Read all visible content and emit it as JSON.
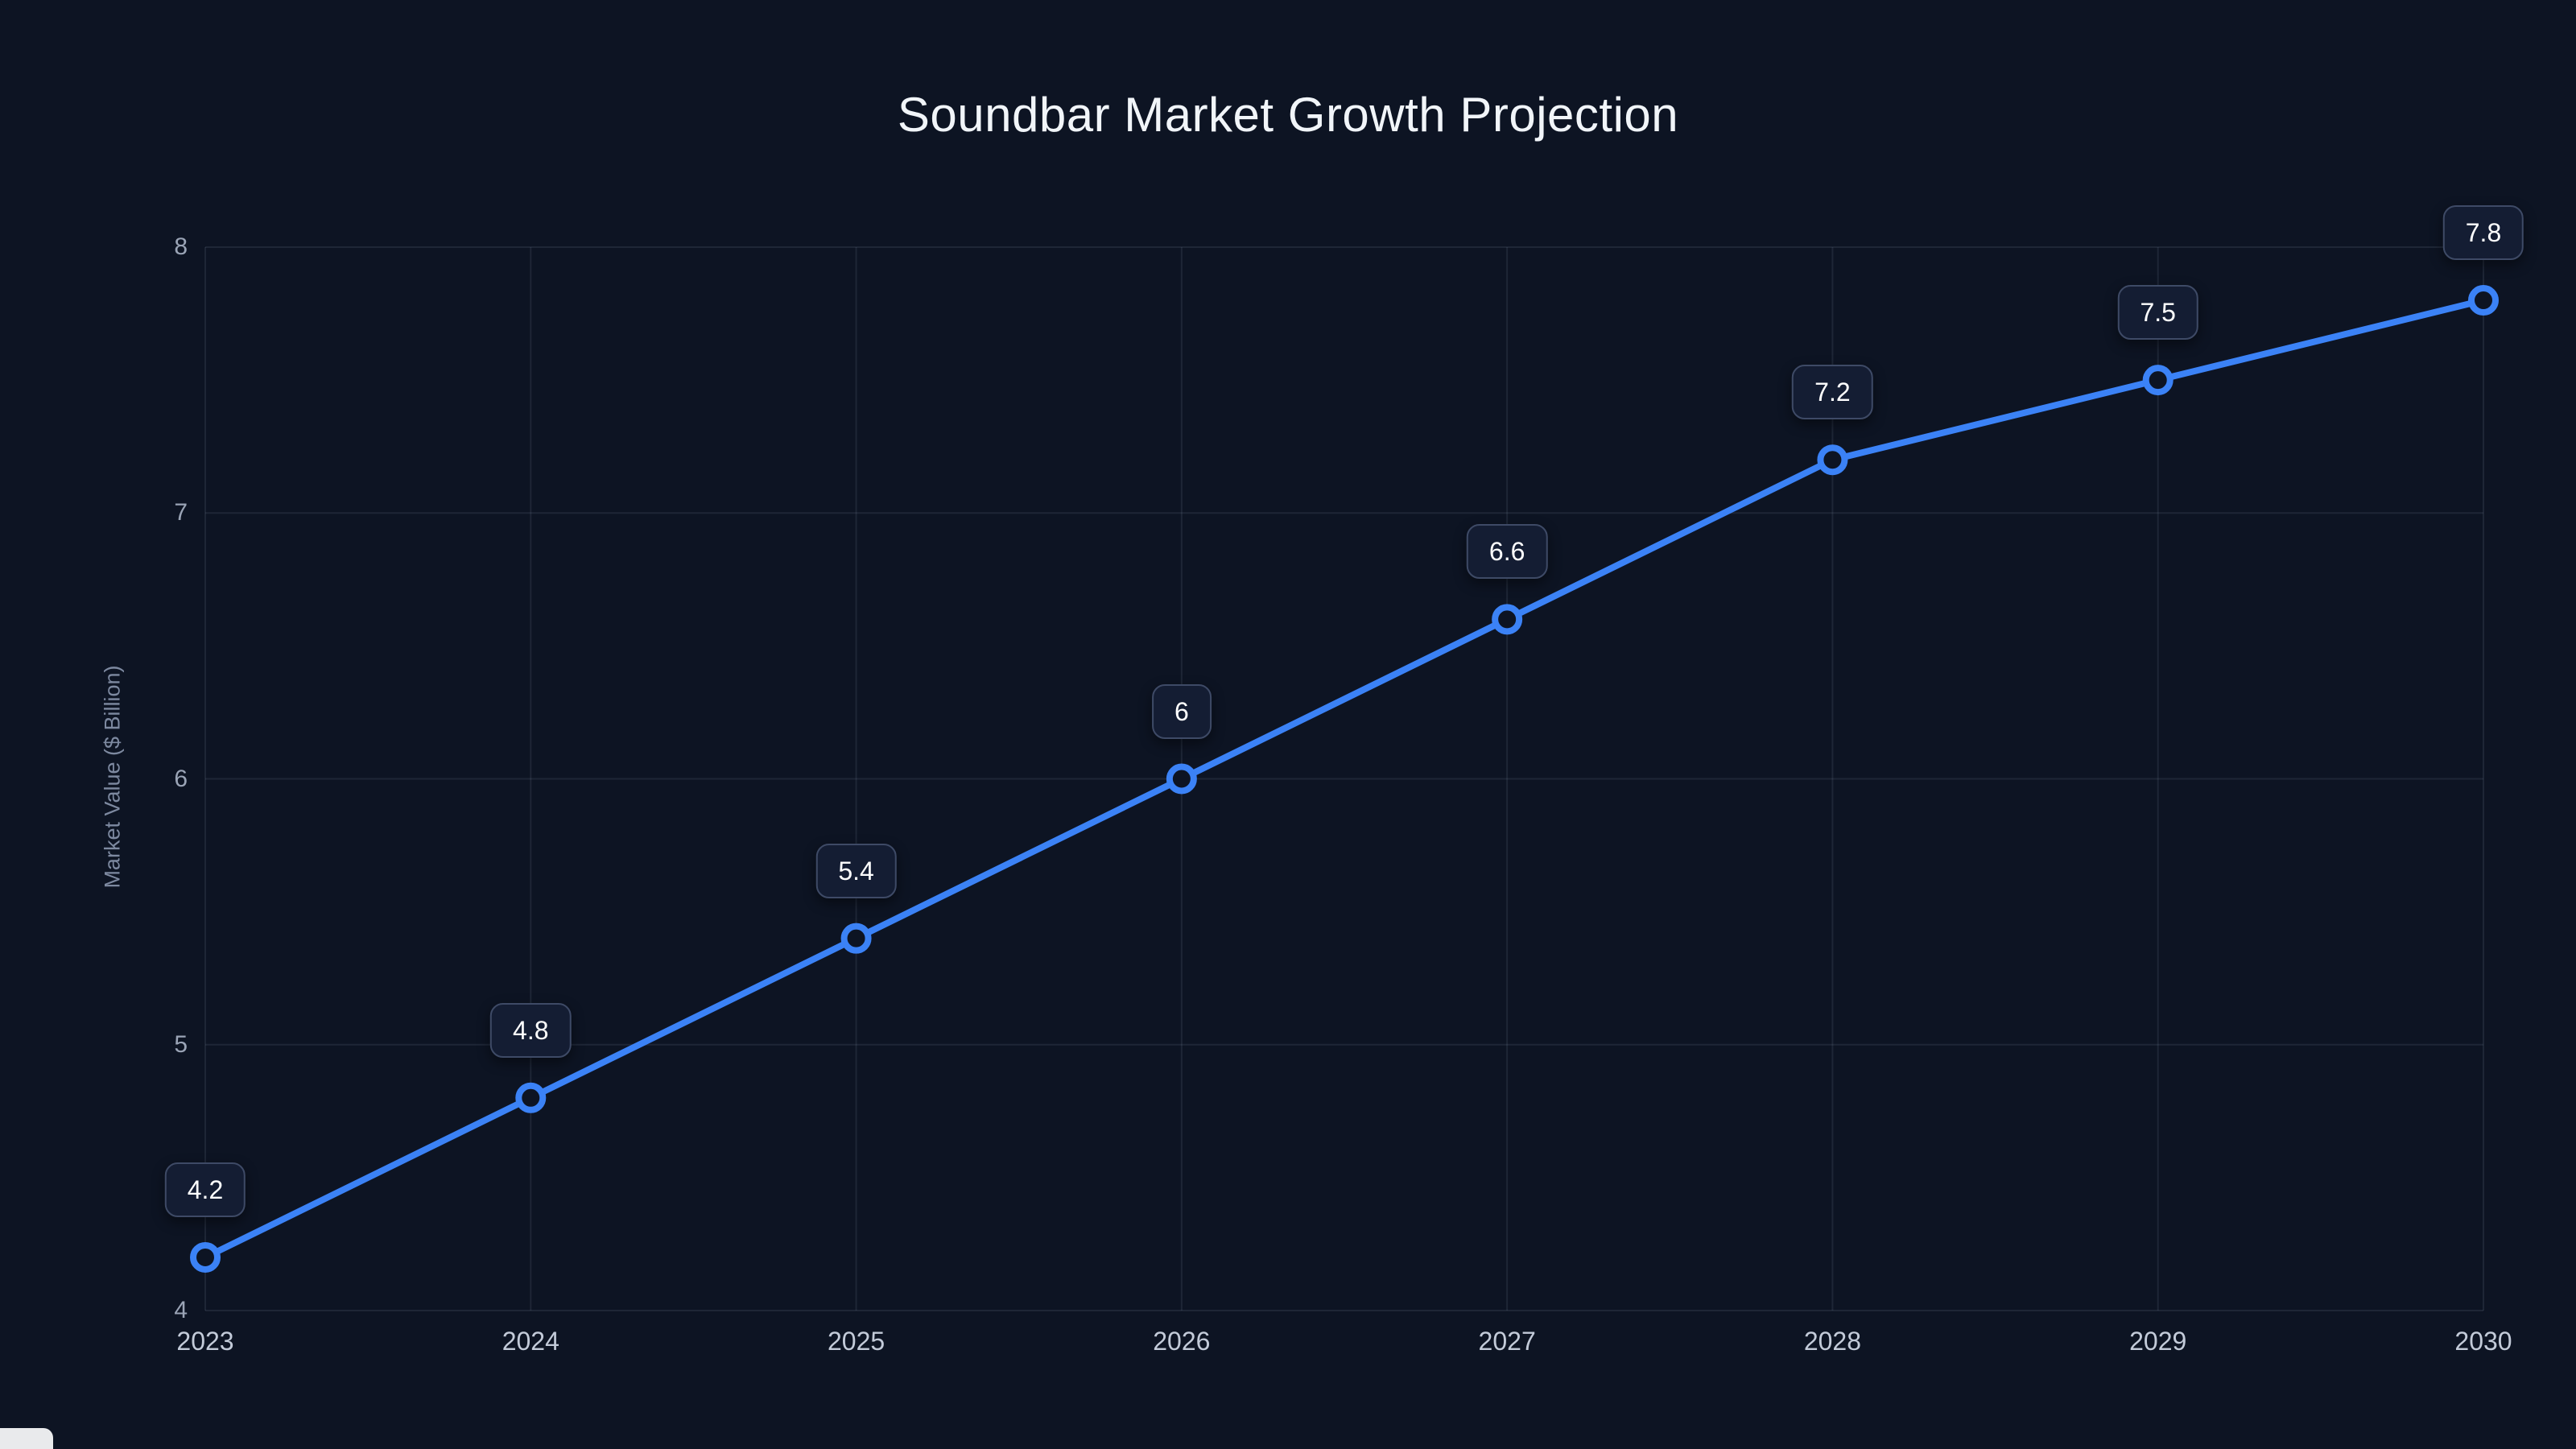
{
  "page": {
    "background": "#0d1423"
  },
  "chart_data": {
    "type": "line",
    "title": "Soundbar Market Growth Projection",
    "xlabel": "",
    "ylabel": "Market Value ($ Billion)",
    "categories": [
      "2023",
      "2024",
      "2025",
      "2026",
      "2027",
      "2028",
      "2029",
      "2030"
    ],
    "values": [
      4.2,
      4.8,
      5.4,
      6,
      6.6,
      7.2,
      7.5,
      7.8
    ],
    "point_labels": [
      "4.2",
      "4.8",
      "5.4",
      "6",
      "6.6",
      "7.2",
      "7.5",
      "7.8"
    ],
    "ylim": [
      4,
      8
    ],
    "yticks": [
      4,
      5,
      6,
      7,
      8
    ],
    "grid": true,
    "legend": "none",
    "colors": {
      "line": "#3b82f6",
      "marker_fill": "#0d1423",
      "grid": "rgba(148,163,184,0.13)",
      "label_bg": "#141d33",
      "label_border": "#3e4a66",
      "title_text": "#f1f5f9",
      "xtick_text": "#c3cbd9",
      "ytick_text": "#9aa4b6",
      "ylabel_text": "#7d89a0"
    }
  }
}
